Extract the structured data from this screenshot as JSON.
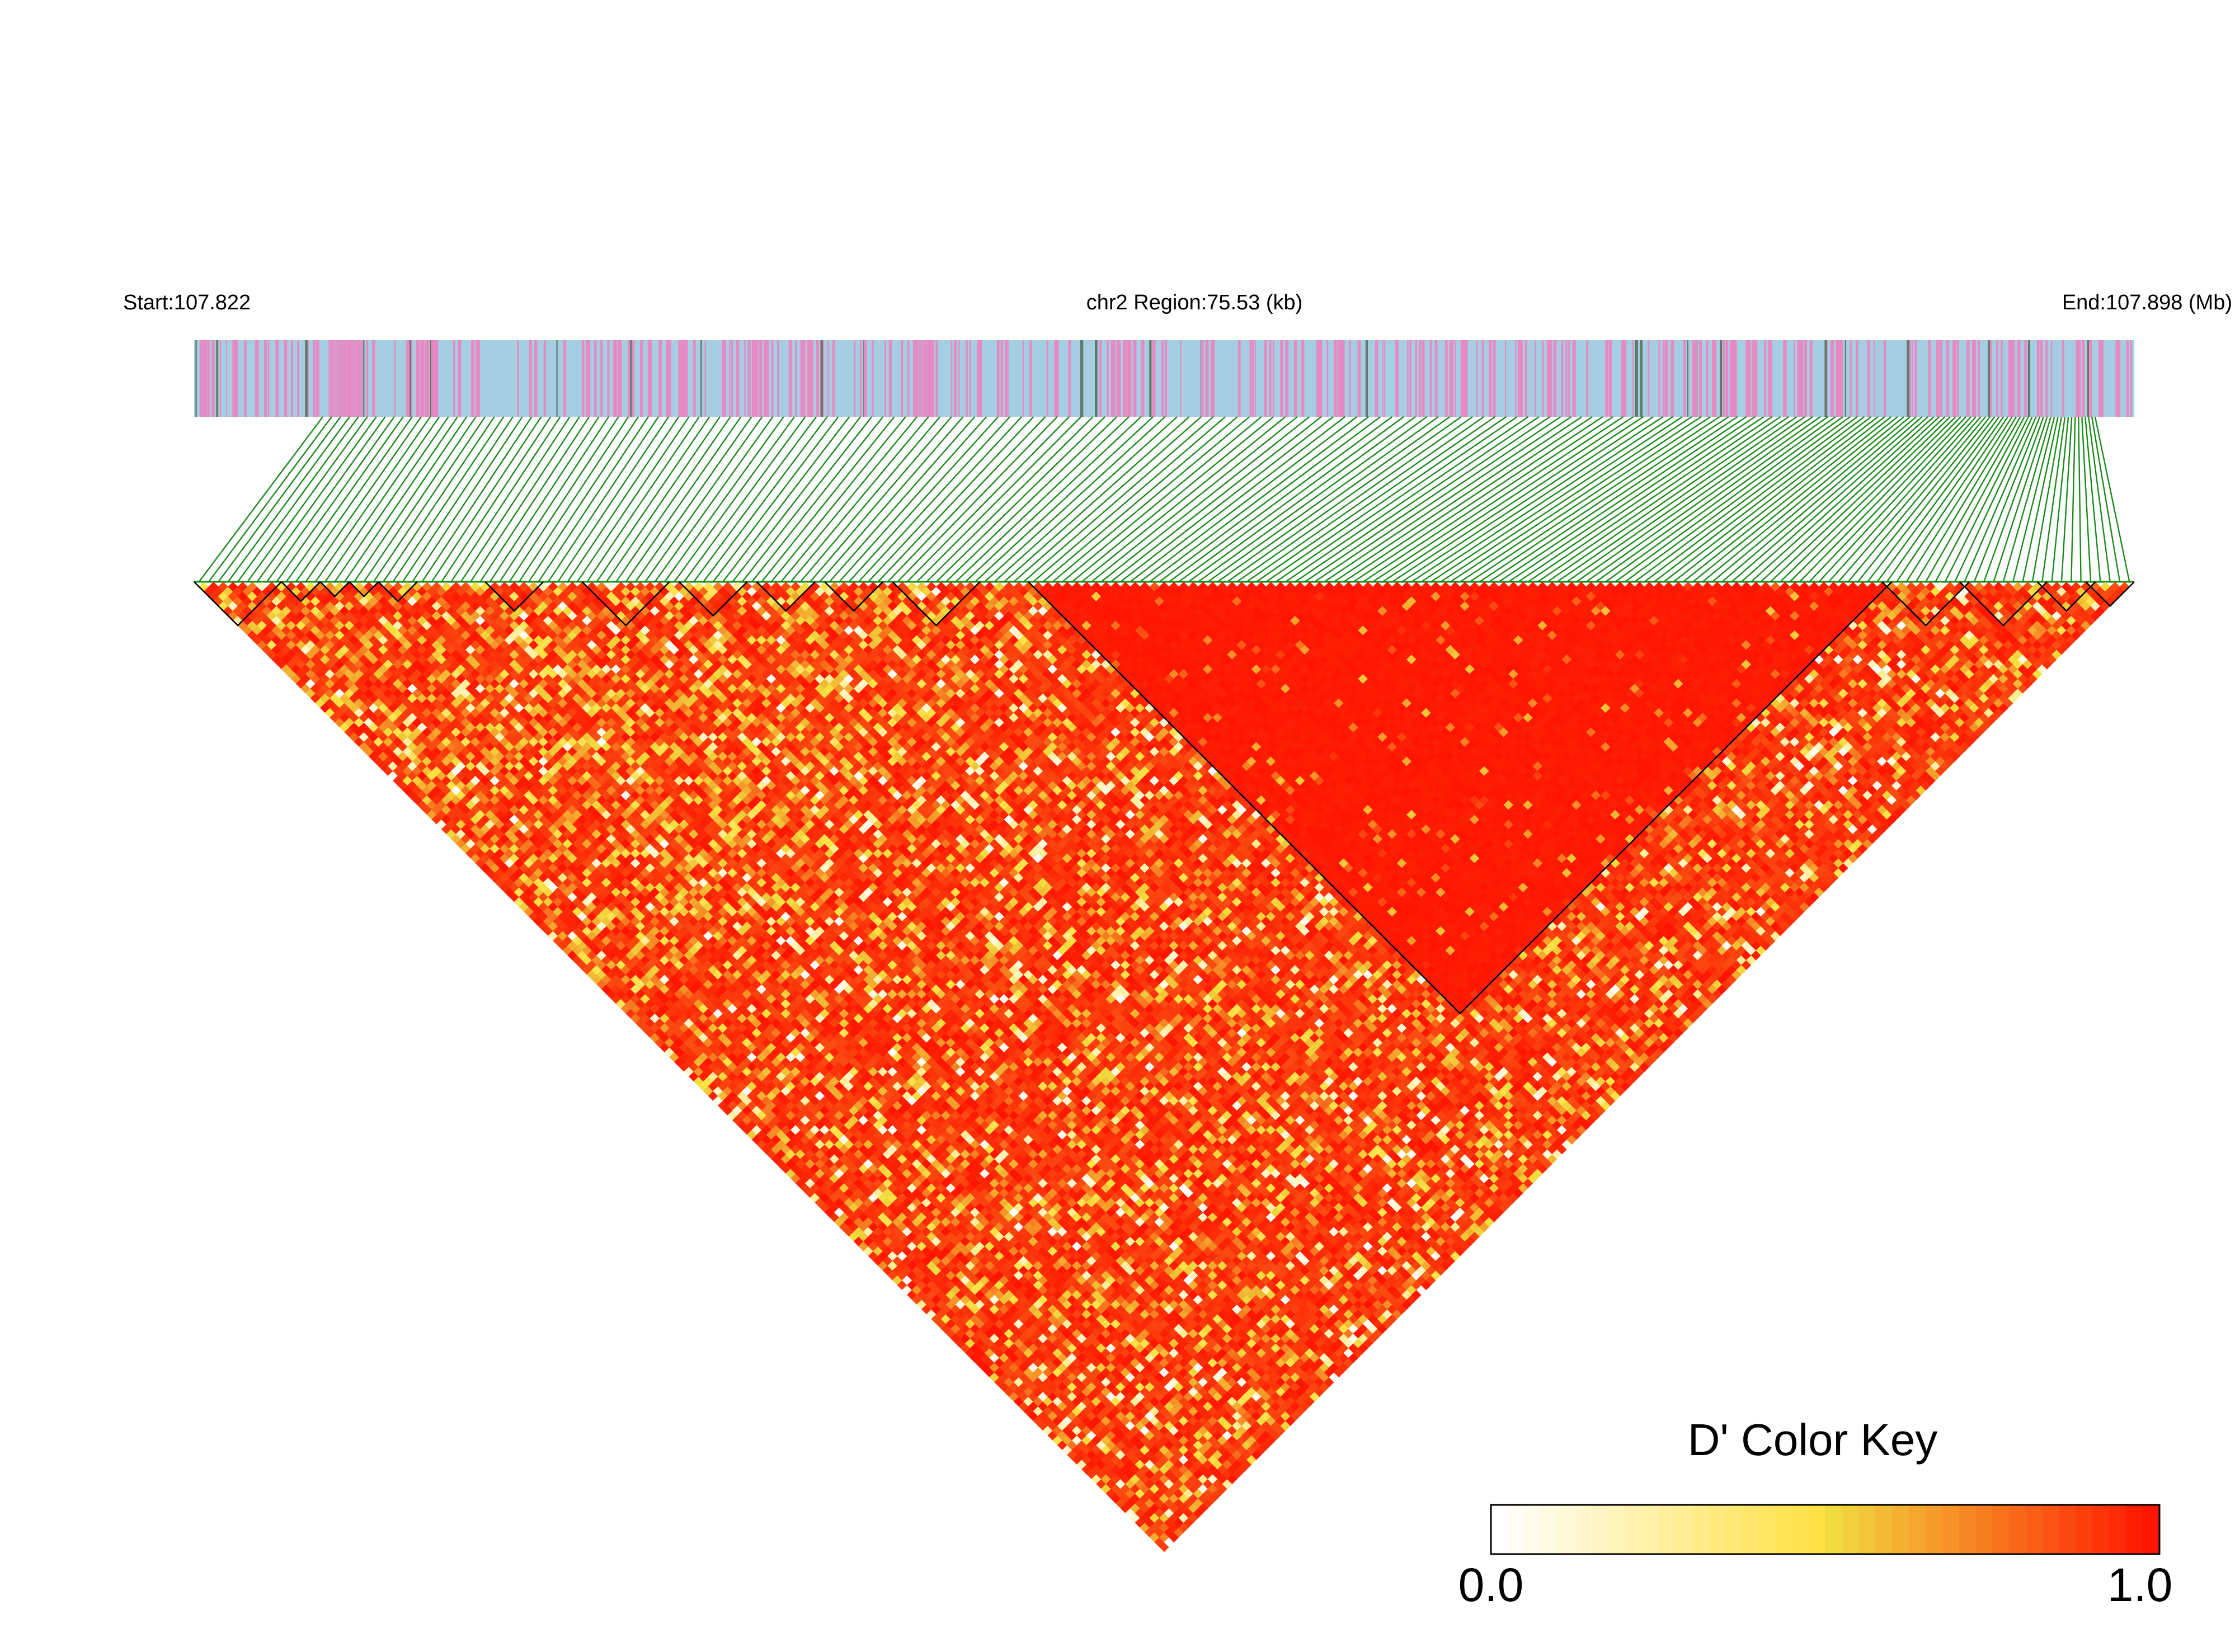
{
  "header": {
    "start_label": "Start:107.822",
    "region_label": "chr2 Region:75.53 (kb)",
    "end_label": "End:107.898 (Mb)"
  },
  "colors": {
    "track_background": "#a6cee3",
    "track_highlight": "#e78ac3",
    "track_dark_mark": "#5f7a68",
    "connector": "#1a8a1a",
    "block_outline": "#000000",
    "high_ld": "#ff1400",
    "mid_ld": "#f0e040",
    "low_ld": "#ffffff"
  },
  "chart_data": {
    "type": "heatmap",
    "title": "",
    "subtitle": "",
    "chromosome": "chr2",
    "region_start_mb": 107.822,
    "region_end_mb": 107.898,
    "region_length_kb": 75.53,
    "variant_count_estimate": 300,
    "ld_statistic": "D'",
    "haplotype_blocks_estimate": 16,
    "color_key": {
      "title": "D' Color Key",
      "min_label": "0.0",
      "max_label": "1.0",
      "min": 0.0,
      "max": 1.0,
      "stops": [
        "#ffffff",
        "#f0e040",
        "#ff1400"
      ]
    }
  }
}
